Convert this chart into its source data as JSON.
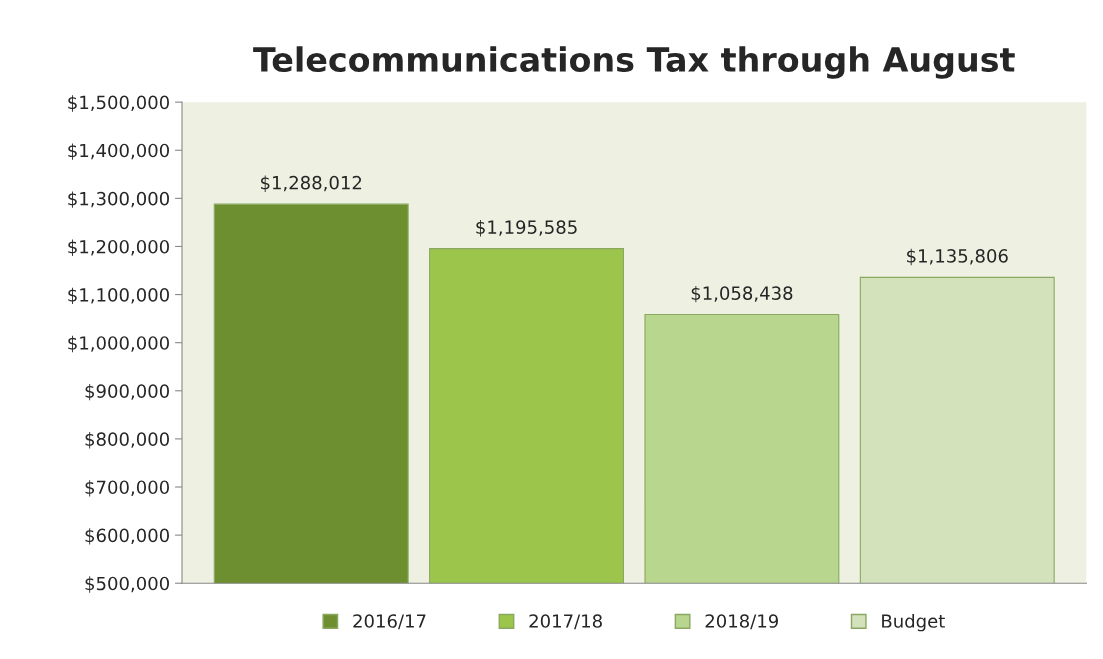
{
  "chart_data": {
    "type": "bar",
    "title": "Telecommunications Tax through August",
    "categories": [
      null
    ],
    "series": [
      {
        "name": "2016/17",
        "color": "#6e8f2f",
        "values": [
          1288012
        ]
      },
      {
        "name": "2017/18",
        "color": "#9cc54c",
        "values": [
          1195585
        ]
      },
      {
        "name": "2018/19",
        "color": "#b9d68e",
        "values": [
          1058438
        ]
      },
      {
        "name": "Budget",
        "color": "#d3e2bb",
        "values": [
          1135806
        ]
      }
    ],
    "ylim": [
      500000,
      1500000
    ],
    "yticks": [
      {
        "value": 500000,
        "label": "$500,000"
      },
      {
        "value": 600000,
        "label": "$600,000"
      },
      {
        "value": 700000,
        "label": "$700,000"
      },
      {
        "value": 800000,
        "label": "$800,000"
      },
      {
        "value": 900000,
        "label": "$900,000"
      },
      {
        "value": 1000000,
        "label": "$1,000,000"
      },
      {
        "value": 1100000,
        "label": "$1,100,000"
      },
      {
        "value": 1200000,
        "label": "$1,200,000"
      },
      {
        "value": 1300000,
        "label": "$1,300,000"
      },
      {
        "value": 1400000,
        "label": "$1,400,000"
      },
      {
        "value": 1500000,
        "label": "$1,500,000"
      }
    ],
    "value_labels": [
      "$1,288,012",
      "$1,195,585",
      "$1,058,438",
      "$1,135,806"
    ],
    "grid": false,
    "legend": "bottom"
  }
}
